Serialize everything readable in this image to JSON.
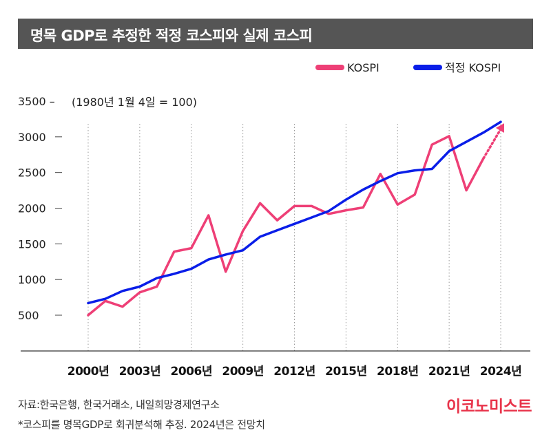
{
  "chart_data": {
    "type": "line",
    "title": "명목 GDP로 추정한 적정 코스피와 실제 코스피",
    "ylabel": "(1980년 1월 4일 = 100)",
    "ylim": [
      0,
      3500
    ],
    "yticks": [
      500,
      1000,
      1500,
      2000,
      2500,
      3000,
      3500
    ],
    "yticks_labels": [
      "500",
      "1000",
      "1500",
      "2000",
      "2500",
      "3000",
      "3500 –"
    ],
    "xlim": [
      1999.7,
      2025
    ],
    "xticks": [
      2000,
      2003,
      2006,
      2009,
      2012,
      2015,
      2018,
      2021,
      2024
    ],
    "xtick_labels": [
      "2000년",
      "2003년",
      "2006년",
      "2009년",
      "2012년",
      "2015년",
      "2018년",
      "2021년",
      "2024년"
    ],
    "grid": "dotted vertical at x ticks",
    "legend": "top-right",
    "series": [
      {
        "name": "KOSPI",
        "color": "#ee3f76",
        "x": [
          2000,
          2001,
          2002,
          2003,
          2004,
          2005,
          2006,
          2007,
          2008,
          2009,
          2010,
          2011,
          2012,
          2013,
          2014,
          2015,
          2016,
          2017,
          2018,
          2019,
          2020,
          2021,
          2022,
          2023
        ],
        "values": [
          500,
          700,
          620,
          820,
          900,
          1390,
          1440,
          1900,
          1110,
          1680,
          2070,
          1830,
          2030,
          2030,
          1920,
          1970,
          2010,
          2480,
          2050,
          2190,
          2890,
          3010,
          2250,
          2700
        ],
        "projected": {
          "x": [
            2023,
            2024.2
          ],
          "values": [
            2700,
            3190
          ]
        }
      },
      {
        "name": "적정 KOSPI",
        "color": "#0a1ee8",
        "x": [
          2000,
          2001,
          2002,
          2003,
          2004,
          2005,
          2006,
          2007,
          2008,
          2009,
          2010,
          2011,
          2012,
          2013,
          2014,
          2015,
          2016,
          2017,
          2018,
          2019,
          2020,
          2021,
          2022,
          2023,
          2024
        ],
        "values": [
          670,
          730,
          840,
          900,
          1020,
          1080,
          1150,
          1280,
          1350,
          1410,
          1600,
          1690,
          1780,
          1870,
          1960,
          2120,
          2260,
          2380,
          2490,
          2530,
          2550,
          2800,
          2930,
          3060,
          3210
        ]
      }
    ]
  },
  "source": "자료:한국은행, 한국거래소, 내일희망경제연구소",
  "note": "*코스피를 명목GDP로 회귀분석해 추정. 2024년은 전망치",
  "brand": "이코노미스트"
}
